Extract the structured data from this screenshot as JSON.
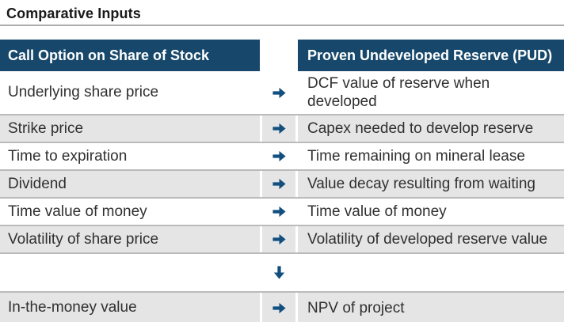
{
  "title": "Comparative Inputs",
  "table": {
    "headers": [
      "Call Option on Share of Stock",
      "Proven Undeveloped Reserve (PUD)"
    ],
    "rows": [
      {
        "left": "Underlying share price",
        "right": "DCF value of reserve when developed",
        "arrow": "right",
        "shade": false
      },
      {
        "left": "Strike price",
        "right": "Capex needed to develop reserve",
        "arrow": "right",
        "shade": true
      },
      {
        "left": "Time to expiration",
        "right": "Time remaining on mineral lease",
        "arrow": "right",
        "shade": false
      },
      {
        "left": "Dividend",
        "right": "Value decay resulting from waiting",
        "arrow": "right",
        "shade": true
      },
      {
        "left": "Time value of money",
        "right": "Time value of money",
        "arrow": "right",
        "shade": false
      },
      {
        "left": "Volatility of share price",
        "right": "Volatility of developed reserve value",
        "arrow": "right",
        "shade": true
      },
      {
        "left": "",
        "right": "",
        "arrow": "down",
        "shade": false
      },
      {
        "left": "In-the-money value",
        "right": "NPV of project",
        "arrow": "right",
        "shade": true
      }
    ]
  },
  "icons": {
    "right_arrow": "right-arrow-icon",
    "down_arrow": "down-arrow-icon"
  },
  "colors": {
    "navy": "#17486B",
    "arrow": "#134F7E",
    "row_shade": "#E5E5E5",
    "separator": "#BBBBBB",
    "title_rule": "#ACACAC",
    "body_text": "#303030",
    "header_text": "#FFFFFF"
  }
}
